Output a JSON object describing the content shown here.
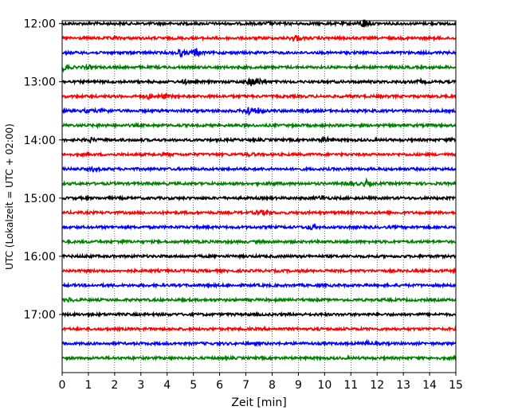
{
  "chart_data": {
    "type": "line",
    "title": "",
    "xlabel": "Zeit  [min]",
    "ylabel": "UTC (Lokalzeit = UTC + 02:00)",
    "xlim": [
      0,
      15
    ],
    "x_ticks": [
      0,
      1,
      2,
      3,
      4,
      5,
      6,
      7,
      8,
      9,
      10,
      11,
      12,
      13,
      14,
      15
    ],
    "y_tick_labels": [
      "12:00",
      "13:00",
      "14:00",
      "15:00",
      "16:00",
      "17:00"
    ],
    "grid": "vertical dotted",
    "legend": "none",
    "trace_minutes": 15,
    "trace_start_times": [
      "12:00",
      "12:15",
      "12:30",
      "12:45",
      "13:00",
      "13:15",
      "13:30",
      "13:45",
      "14:00",
      "14:15",
      "14:30",
      "14:45",
      "15:00",
      "15:15",
      "15:30",
      "15:45",
      "16:00",
      "16:15",
      "16:30",
      "16:45",
      "17:00",
      "17:15",
      "17:30",
      "17:45"
    ],
    "colors": [
      "#000000",
      "#ff0000",
      "#0000ff",
      "#008000"
    ],
    "series": [
      {
        "start": "12:00",
        "color": "#000000",
        "events": [
          [
            7.9,
            1.2
          ],
          [
            11.5,
            6
          ]
        ]
      },
      {
        "start": "12:15",
        "color": "#ff0000",
        "events": [
          [
            2.0,
            1.2
          ],
          [
            8.9,
            4.5
          ]
        ]
      },
      {
        "start": "12:30",
        "color": "#0000ff",
        "events": [
          [
            4.5,
            4.5
          ],
          [
            5.1,
            5.5
          ]
        ]
      },
      {
        "start": "12:45",
        "color": "#008000",
        "events": [
          [
            0.1,
            5
          ],
          [
            1.0,
            2
          ]
        ]
      },
      {
        "start": "13:00",
        "color": "#000000",
        "events": [
          [
            4.7,
            2
          ],
          [
            7.2,
            5
          ],
          [
            7.5,
            4
          ],
          [
            13.7,
            2
          ]
        ]
      },
      {
        "start": "13:15",
        "color": "#ff0000",
        "events": [
          [
            3.3,
            2
          ],
          [
            3.9,
            3
          ]
        ]
      },
      {
        "start": "13:30",
        "color": "#0000ff",
        "events": [
          [
            1.0,
            2
          ],
          [
            1.6,
            3
          ],
          [
            7.1,
            5.5
          ],
          [
            7.5,
            3
          ]
        ]
      },
      {
        "start": "13:45",
        "color": "#008000",
        "events": [
          [
            1.5,
            1
          ]
        ]
      },
      {
        "start": "14:00",
        "color": "#000000",
        "events": [
          [
            1.1,
            2.5
          ],
          [
            10.0,
            3
          ],
          [
            14.9,
            2
          ]
        ]
      },
      {
        "start": "14:15",
        "color": "#ff0000",
        "events": [
          [
            4.0,
            1.5
          ],
          [
            7.2,
            1.5
          ]
        ]
      },
      {
        "start": "14:30",
        "color": "#0000ff",
        "events": [
          [
            1.2,
            2
          ]
        ]
      },
      {
        "start": "14:45",
        "color": "#008000",
        "events": [
          [
            8.0,
            1.5
          ],
          [
            11.0,
            2.5
          ],
          [
            11.6,
            4
          ]
        ]
      },
      {
        "start": "15:00",
        "color": "#000000",
        "events": [
          [
            9.9,
            2.5
          ]
        ]
      },
      {
        "start": "15:15",
        "color": "#ff0000",
        "events": [
          [
            7.5,
            2.5
          ],
          [
            7.8,
            3
          ]
        ]
      },
      {
        "start": "15:30",
        "color": "#0000ff",
        "events": [
          [
            9.5,
            3
          ]
        ]
      },
      {
        "start": "15:45",
        "color": "#008000",
        "events": [
          [
            2.3,
            2
          ]
        ]
      },
      {
        "start": "16:00",
        "color": "#000000",
        "events": [
          [
            1.0,
            1
          ]
        ]
      },
      {
        "start": "16:15",
        "color": "#ff0000",
        "events": []
      },
      {
        "start": "16:30",
        "color": "#0000ff",
        "events": []
      },
      {
        "start": "16:45",
        "color": "#008000",
        "events": [
          [
            0.3,
            2
          ]
        ]
      },
      {
        "start": "17:00",
        "color": "#000000",
        "events": []
      },
      {
        "start": "17:15",
        "color": "#ff0000",
        "events": []
      },
      {
        "start": "17:30",
        "color": "#0000ff",
        "events": [
          [
            11.6,
            2
          ]
        ]
      },
      {
        "start": "17:45",
        "color": "#008000",
        "events": []
      }
    ]
  }
}
